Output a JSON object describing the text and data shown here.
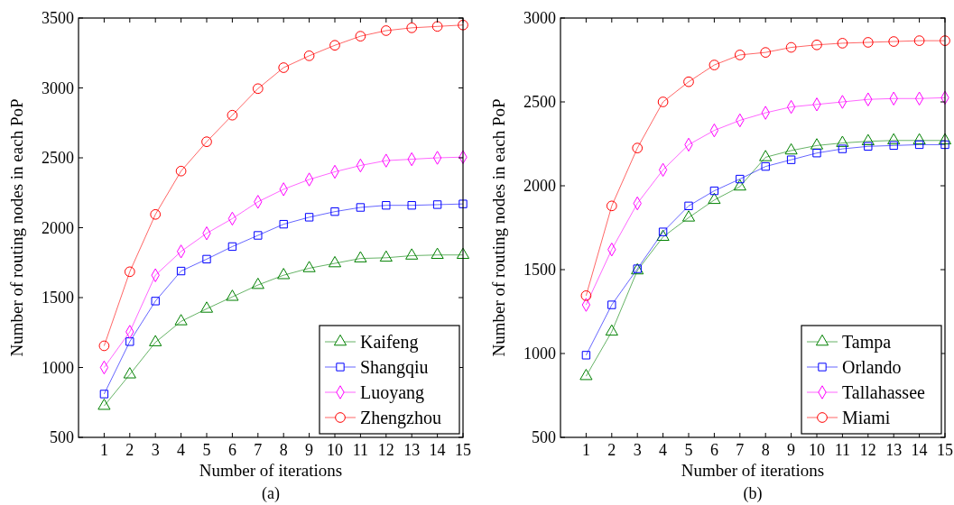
{
  "chart_data": [
    {
      "type": "line",
      "xlabel": "Number of iterations",
      "ylabel": "Number of routing nodes in each PoP",
      "annotations": [
        "(a)"
      ],
      "x": [
        1,
        2,
        3,
        4,
        5,
        6,
        7,
        8,
        9,
        10,
        11,
        12,
        13,
        14,
        15
      ],
      "xlim": [
        0,
        15
      ],
      "xticks": [
        1,
        2,
        3,
        4,
        5,
        6,
        7,
        8,
        9,
        10,
        11,
        12,
        13,
        14,
        15
      ],
      "ylim": [
        500,
        3500
      ],
      "yticks": [
        500,
        1000,
        1500,
        2000,
        2500,
        3000,
        3500
      ],
      "grid": false,
      "legend": "bottom right",
      "series": [
        {
          "name": "Kaifeng",
          "color": "#008000",
          "marker": "triangle",
          "values": [
            725,
            950,
            1180,
            1330,
            1420,
            1505,
            1590,
            1660,
            1710,
            1745,
            1780,
            1785,
            1800,
            1805,
            1805
          ]
        },
        {
          "name": "Shangqiu",
          "color": "#0000ff",
          "marker": "square",
          "values": [
            810,
            1185,
            1475,
            1690,
            1775,
            1865,
            1945,
            2025,
            2075,
            2115,
            2145,
            2160,
            2160,
            2165,
            2170
          ]
        },
        {
          "name": "Luoyang",
          "color": "#ff00ff",
          "marker": "diamond",
          "values": [
            1000,
            1255,
            1660,
            1830,
            1960,
            2065,
            2185,
            2275,
            2345,
            2400,
            2445,
            2480,
            2490,
            2500,
            2505
          ]
        },
        {
          "name": "Zhengzhou",
          "color": "#ff0000",
          "marker": "circle",
          "values": [
            1155,
            1685,
            2095,
            2405,
            2615,
            2805,
            2995,
            3145,
            3230,
            3305,
            3370,
            3410,
            3430,
            3440,
            3450
          ]
        }
      ]
    },
    {
      "type": "line",
      "xlabel": "Number of iterations",
      "ylabel": "Number of routing nodes in each PoP",
      "annotations": [
        "(b)"
      ],
      "x": [
        1,
        2,
        3,
        4,
        5,
        6,
        7,
        8,
        9,
        10,
        11,
        12,
        13,
        14,
        15
      ],
      "xlim": [
        0,
        15
      ],
      "xticks": [
        1,
        2,
        3,
        4,
        5,
        6,
        7,
        8,
        9,
        10,
        11,
        12,
        13,
        14,
        15
      ],
      "ylim": [
        500,
        3000
      ],
      "yticks": [
        500,
        1000,
        1500,
        2000,
        2500,
        3000
      ],
      "grid": false,
      "legend": "bottom right",
      "series": [
        {
          "name": "Tampa",
          "color": "#008000",
          "marker": "triangle",
          "values": [
            865,
            1130,
            1495,
            1695,
            1810,
            1915,
            1995,
            2170,
            2210,
            2240,
            2255,
            2265,
            2270,
            2270,
            2270
          ]
        },
        {
          "name": "Orlando",
          "color": "#0000ff",
          "marker": "square",
          "values": [
            990,
            1290,
            1505,
            1725,
            1880,
            1970,
            2040,
            2115,
            2155,
            2195,
            2220,
            2235,
            2240,
            2245,
            2245
          ]
        },
        {
          "name": "Tallahassee",
          "color": "#ff00ff",
          "marker": "diamond",
          "values": [
            1290,
            1620,
            1895,
            2095,
            2245,
            2330,
            2390,
            2435,
            2470,
            2485,
            2500,
            2515,
            2520,
            2520,
            2525
          ]
        },
        {
          "name": "Miami",
          "color": "#ff0000",
          "marker": "circle",
          "values": [
            1345,
            1880,
            2225,
            2500,
            2620,
            2720,
            2780,
            2795,
            2825,
            2840,
            2850,
            2855,
            2860,
            2865,
            2865
          ]
        }
      ]
    }
  ]
}
